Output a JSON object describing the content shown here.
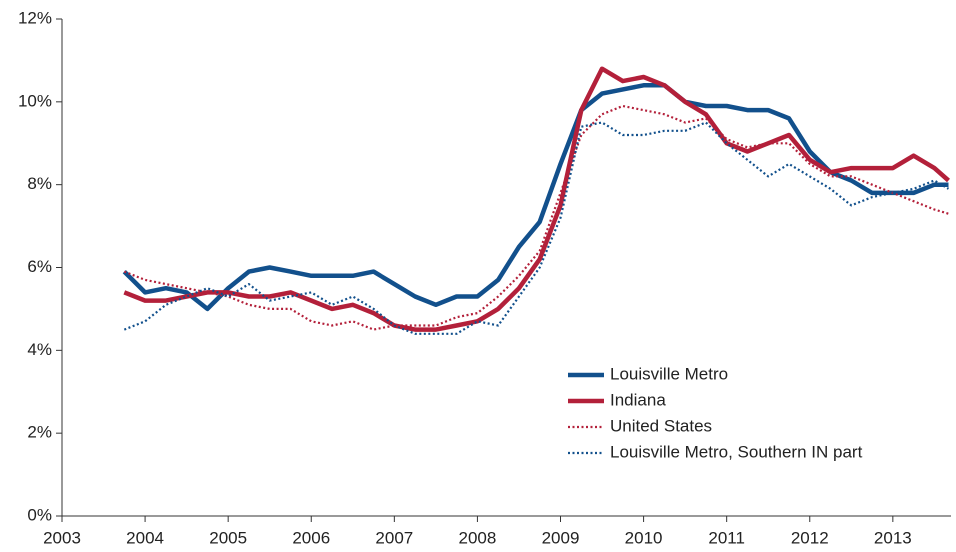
{
  "chart_data": {
    "type": "line",
    "x": [
      2003.75,
      2004.0,
      2004.25,
      2004.5,
      2004.75,
      2005.0,
      2005.25,
      2005.5,
      2005.75,
      2006.0,
      2006.25,
      2006.5,
      2006.75,
      2007.0,
      2007.25,
      2007.5,
      2007.75,
      2008.0,
      2008.25,
      2008.5,
      2008.75,
      2009.0,
      2009.25,
      2009.5,
      2009.75,
      2010.0,
      2010.25,
      2010.5,
      2010.75,
      2011.0,
      2011.25,
      2011.5,
      2011.75,
      2012.0,
      2012.25,
      2012.5,
      2012.75,
      2013.0,
      2013.25,
      2013.5,
      2013.67
    ],
    "series": [
      {
        "name": "Louisville Metro",
        "color": "#12508c",
        "style": "solid",
        "values": [
          5.9,
          5.4,
          5.5,
          5.4,
          5.0,
          5.5,
          5.9,
          6.0,
          5.9,
          5.8,
          5.8,
          5.8,
          5.9,
          5.6,
          5.3,
          5.1,
          5.3,
          5.3,
          5.7,
          6.5,
          7.1,
          8.5,
          9.8,
          10.2,
          10.3,
          10.4,
          10.4,
          10.0,
          9.9,
          9.9,
          9.8,
          9.8,
          9.6,
          8.8,
          8.3,
          8.1,
          7.8,
          7.8,
          7.8,
          8.0,
          8.0
        ]
      },
      {
        "name": "Indiana",
        "color": "#b3203a",
        "style": "solid",
        "values": [
          5.4,
          5.2,
          5.2,
          5.3,
          5.4,
          5.4,
          5.3,
          5.3,
          5.4,
          5.2,
          5.0,
          5.1,
          4.9,
          4.6,
          4.5,
          4.5,
          4.6,
          4.7,
          5.0,
          5.5,
          6.2,
          7.5,
          9.8,
          10.8,
          10.5,
          10.6,
          10.4,
          10.0,
          9.7,
          9.0,
          8.8,
          9.0,
          9.2,
          8.6,
          8.3,
          8.4,
          8.4,
          8.4,
          8.7,
          8.4,
          8.1
        ]
      },
      {
        "name": "United States",
        "color": "#b3203a",
        "style": "dotted",
        "values": [
          5.9,
          5.7,
          5.6,
          5.5,
          5.4,
          5.3,
          5.1,
          5.0,
          5.0,
          4.7,
          4.6,
          4.7,
          4.5,
          4.6,
          4.6,
          4.6,
          4.8,
          4.9,
          5.3,
          5.8,
          6.4,
          7.8,
          9.2,
          9.7,
          9.9,
          9.8,
          9.7,
          9.5,
          9.6,
          9.1,
          8.9,
          9.0,
          9.0,
          8.5,
          8.2,
          8.2,
          8.0,
          7.8,
          7.6,
          7.4,
          7.3
        ]
      },
      {
        "name": "Louisville Metro, Southern IN part",
        "color": "#12508c",
        "style": "dotted",
        "values": [
          4.5,
          4.7,
          5.1,
          5.3,
          5.5,
          5.3,
          5.6,
          5.2,
          5.3,
          5.4,
          5.1,
          5.3,
          5.0,
          4.6,
          4.4,
          4.4,
          4.4,
          4.7,
          4.6,
          5.3,
          6.0,
          7.2,
          9.4,
          9.5,
          9.2,
          9.2,
          9.3,
          9.3,
          9.5,
          9.0,
          8.6,
          8.2,
          8.5,
          8.2,
          7.9,
          7.5,
          7.7,
          7.8,
          7.9,
          8.1,
          7.9
        ]
      }
    ],
    "xlim": [
      2003,
      2013.7
    ],
    "xticks": [
      2003,
      2004,
      2005,
      2006,
      2007,
      2008,
      2009,
      2010,
      2011,
      2012,
      2013
    ],
    "ylim": [
      0,
      12
    ],
    "yticks": [
      {
        "value": 0,
        "label": "0%"
      },
      {
        "value": 2,
        "label": "2%"
      },
      {
        "value": 4,
        "label": "4%"
      },
      {
        "value": 6,
        "label": "6%"
      },
      {
        "value": 8,
        "label": "8%"
      },
      {
        "value": 10,
        "label": "10%"
      },
      {
        "value": 12,
        "label": "12%"
      }
    ],
    "legend": "lower right",
    "grid": false
  }
}
